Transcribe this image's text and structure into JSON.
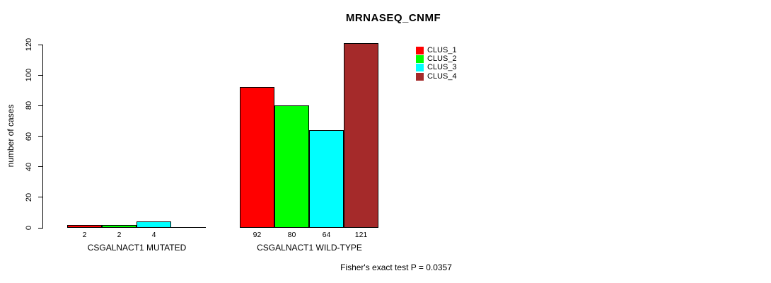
{
  "title": "MRNASEQ_CNMF",
  "footer": "Fisher's exact test P = 0.0357",
  "y_axis": {
    "label": "number of cases",
    "ticks": [
      0,
      20,
      40,
      60,
      80,
      100,
      120
    ]
  },
  "legend": {
    "items": [
      {
        "label": "CLUS_1",
        "color": "#FF0000"
      },
      {
        "label": "CLUS_2",
        "color": "#00FF00"
      },
      {
        "label": "CLUS_3",
        "color": "#00FFFF"
      },
      {
        "label": "CLUS_4",
        "color": "#A52A2A"
      }
    ]
  },
  "chart_data": {
    "type": "bar",
    "title": "MRNASEQ_CNMF",
    "xlabel": "",
    "ylabel": "number of cases",
    "ylim": [
      0,
      120
    ],
    "yticks": [
      0,
      20,
      40,
      60,
      80,
      100,
      120
    ],
    "grid": false,
    "legend_position": "top-right",
    "categories": [
      "CSGALNACT1 MUTATED",
      "CSGALNACT1 WILD-TYPE"
    ],
    "series": [
      {
        "name": "CLUS_1",
        "color": "#FF0000",
        "values": [
          2,
          92
        ]
      },
      {
        "name": "CLUS_2",
        "color": "#00FF00",
        "values": [
          2,
          80
        ]
      },
      {
        "name": "CLUS_3",
        "color": "#00FFFF",
        "values": [
          4,
          64
        ]
      },
      {
        "name": "CLUS_4",
        "color": "#A52A2A",
        "values": [
          0,
          121
        ]
      }
    ],
    "bar_value_labels": [
      [
        "2",
        "2",
        "4",
        ""
      ],
      [
        "92",
        "80",
        "64",
        "121"
      ]
    ],
    "annotation": "Fisher's exact test P = 0.0357"
  }
}
